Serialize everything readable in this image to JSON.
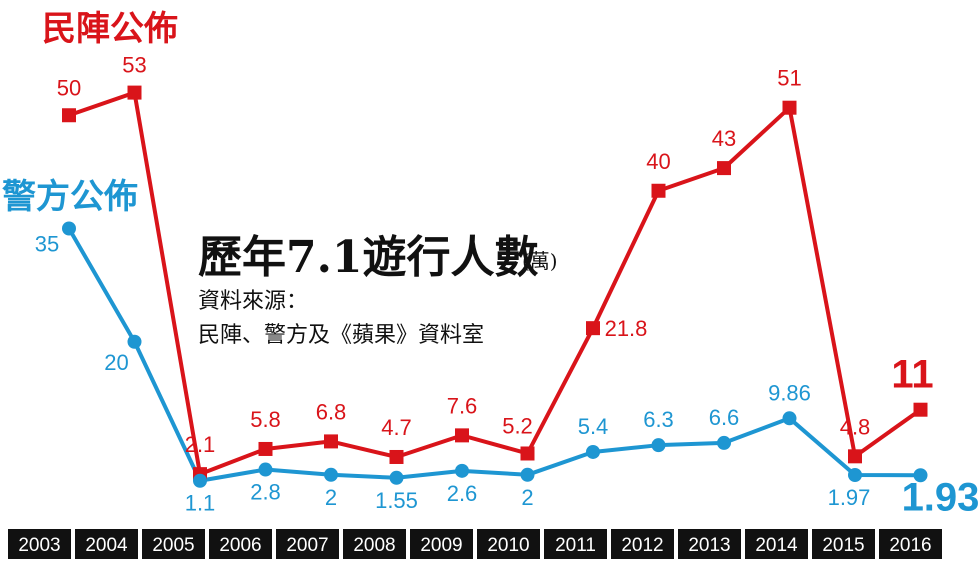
{
  "chart_data": {
    "type": "line",
    "title": "歷年7.1遊行人數",
    "unit": "(萬)",
    "source_label": "資料來源：",
    "source_text": "民陣、警方及《蘋果》資料室",
    "categories": [
      "2003",
      "2004",
      "2005",
      "2006",
      "2007",
      "2008",
      "2009",
      "2010",
      "2011",
      "2012",
      "2013",
      "2014",
      "2015",
      "2016"
    ],
    "series": [
      {
        "name": "民陣公佈",
        "color": "#d9141a",
        "marker": "square",
        "values": [
          50,
          53,
          2.1,
          5.8,
          6.8,
          4.7,
          7.6,
          5.2,
          21.8,
          40,
          43,
          51,
          4.8,
          11
        ],
        "labels": [
          "50",
          "53",
          "2.1",
          "5.8",
          "6.8",
          "4.7",
          "7.6",
          "5.2",
          "21.8",
          "40",
          "43",
          "51",
          "4.8",
          "11"
        ]
      },
      {
        "name": "警方公佈",
        "color": "#1e96d2",
        "marker": "circle",
        "values": [
          35,
          20,
          1.1,
          2.8,
          2,
          1.55,
          2.6,
          2,
          5.4,
          6.3,
          6.6,
          9.86,
          1.97,
          1.93
        ],
        "labels": [
          "35",
          "20",
          "1.1",
          "2.8",
          "2",
          "1.55",
          "2.6",
          "2",
          "5.4",
          "6.3",
          "6.6",
          "9.86",
          "1.97",
          "1.93"
        ]
      }
    ],
    "grid": false,
    "legend": "inline-labels"
  }
}
